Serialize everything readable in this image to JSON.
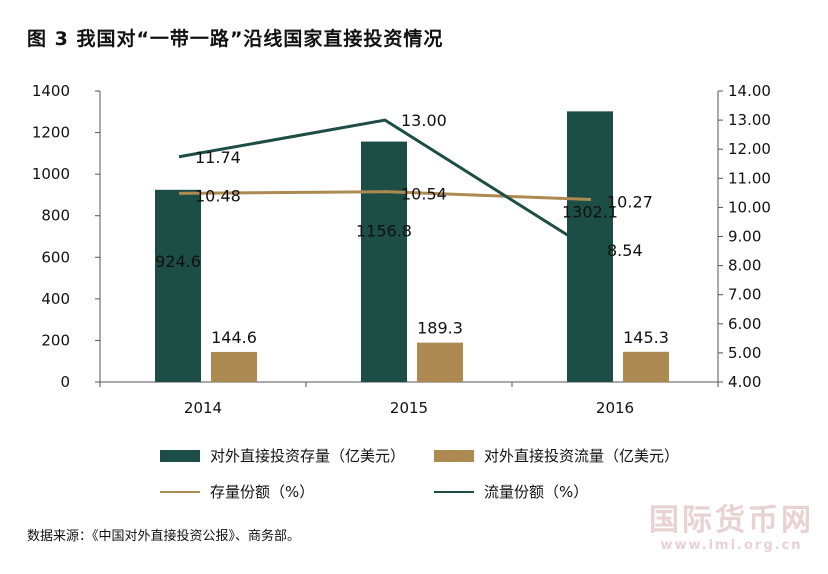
{
  "title": "图 3  我国对“一带一路”沿线国家直接投资情况",
  "source": "数据来源：《中国对外直接投资公报》、商务部。",
  "watermark": {
    "main": "国际货币网",
    "url": "www.imi.org.cn"
  },
  "colors": {
    "stock_bar": "#1c4e45",
    "flow_bar": "#ad8a52",
    "stock_line": "#ad8a52",
    "flow_line": "#1c4e45"
  },
  "legend": {
    "stock_bar": "对外直接投资存量（亿美元）",
    "flow_bar": "对外直接投资流量（亿美元）",
    "stock_line": "存量份额（%）",
    "flow_line": "流量份额（%）"
  },
  "chart_data": {
    "type": "bar",
    "title": "我国对“一带一路”沿线国家直接投资情况",
    "categories": [
      "2014",
      "2015",
      "2016"
    ],
    "left_axis": {
      "min": 0,
      "max": 1400,
      "ticks": [
        "0",
        "200",
        "400",
        "600",
        "800",
        "1000",
        "1200",
        "1400"
      ]
    },
    "right_axis": {
      "min": 4,
      "max": 14,
      "ticks": [
        "4.00",
        "5.00",
        "6.00",
        "7.00",
        "8.00",
        "9.00",
        "10.00",
        "11.00",
        "12.00",
        "13.00",
        "14.00"
      ]
    },
    "series": [
      {
        "name": "对外直接投资存量（亿美元）",
        "kind": "bar",
        "axis": "left",
        "values": [
          924.6,
          1156.8,
          1302.1
        ],
        "labels": [
          "924.6",
          "1156.8",
          "1302.1"
        ]
      },
      {
        "name": "对外直接投资流量（亿美元）",
        "kind": "bar",
        "axis": "left",
        "values": [
          144.6,
          189.3,
          145.3
        ],
        "labels": [
          "144.6",
          "189.3",
          "145.3"
        ]
      },
      {
        "name": "存量份额（%）",
        "kind": "line",
        "axis": "right",
        "values": [
          10.48,
          10.54,
          10.27
        ],
        "labels": [
          "10.48",
          "10.54",
          "10.27"
        ]
      },
      {
        "name": "流量份额（%）",
        "kind": "line",
        "axis": "right",
        "values": [
          11.74,
          13.0,
          8.54
        ],
        "labels": [
          "11.74",
          "13.00",
          "8.54"
        ]
      }
    ]
  }
}
